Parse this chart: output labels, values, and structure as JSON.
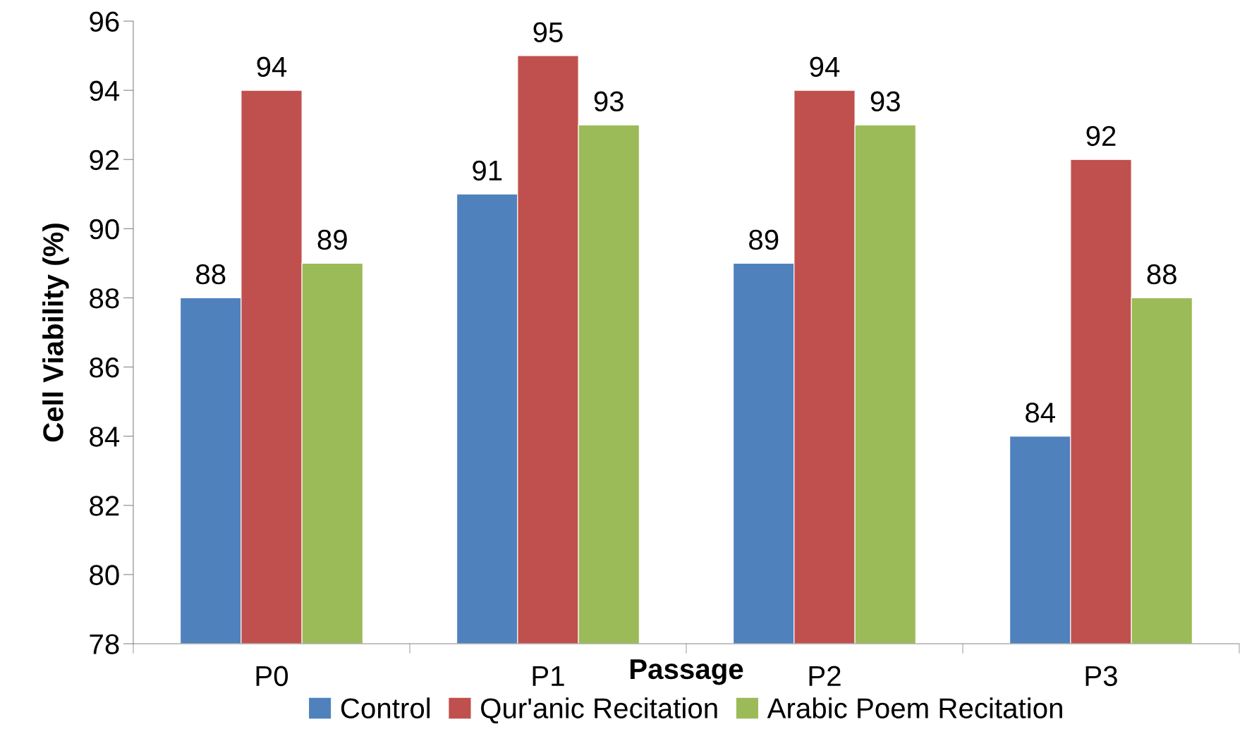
{
  "chart_data": {
    "type": "bar",
    "xlabel": "Passage",
    "ylabel": "Cell Viability (%)",
    "categories": [
      "P0",
      "P1",
      "P2",
      "P3"
    ],
    "series": [
      {
        "name": "Control",
        "color": "#4f81bd",
        "values": [
          88,
          91,
          89,
          84
        ]
      },
      {
        "name": "Qur'anic Recitation",
        "color": "#c0504d",
        "values": [
          94,
          95,
          94,
          92
        ]
      },
      {
        "name": "Arabic Poem Recitation",
        "color": "#9bbb59",
        "values": [
          89,
          93,
          93,
          88
        ]
      }
    ],
    "ylim": [
      78,
      96
    ],
    "yticks": [
      78,
      80,
      82,
      84,
      86,
      88,
      90,
      92,
      94,
      96
    ],
    "data_labels": true,
    "grid": false,
    "legend": "bottom"
  }
}
